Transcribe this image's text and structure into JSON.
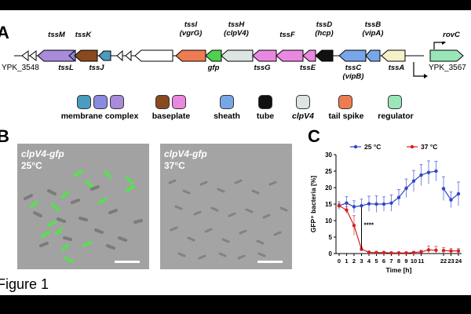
{
  "figure": {
    "caption": "Figure 1",
    "panels": {
      "a": "A",
      "b": "B",
      "c": "C"
    }
  },
  "gene_cluster": {
    "left_locus": "YPK_3548",
    "right_locus": "YPK_3567",
    "genes": [
      {
        "label": "tssM",
        "color": "#a98bdc"
      },
      {
        "label": "tssL",
        "color": "#a98bdc"
      },
      {
        "label": "tssK",
        "color": "#8a4a20"
      },
      {
        "label": "tssJ",
        "color": "#4b9cc0"
      },
      {
        "label": "tssI (vgrG)",
        "color": "#ee7c52"
      },
      {
        "label": "gfp",
        "color": "#4fd14f"
      },
      {
        "label": "tssH (clpV4)",
        "color": "#dde5e2"
      },
      {
        "label": "tssG",
        "color": "#ea88e0"
      },
      {
        "label": "tssF",
        "color": "#ea88e0"
      },
      {
        "label": "tssE",
        "color": "#ea88e0"
      },
      {
        "label": "tssD (hcp)",
        "color": "#111111"
      },
      {
        "label": "tssC (vipB)",
        "color": "#79a6e8"
      },
      {
        "label": "tssB (vipA)",
        "color": "#79a6e8"
      },
      {
        "label": "tssA",
        "color": "#f5f0c8"
      },
      {
        "label": "rovC",
        "color": "#9ae6b9"
      }
    ],
    "tssI_top": "tssI",
    "tssI_sub": "(vgrG)",
    "tssH_top": "tssH",
    "tssH_sub": "(clpV4)",
    "tssD_top": "tssD",
    "tssD_sub": "(hcp)",
    "tssB_top": "tssB",
    "tssB_sub": "(vipA)",
    "tssC_top": "tssC",
    "tssC_sub": "(vipB)"
  },
  "legend": [
    {
      "label": "membrane complex",
      "colors": [
        "#4b9cc0",
        "#8a8ae0",
        "#a98bdc"
      ]
    },
    {
      "label": "baseplate",
      "colors": [
        "#8a4a20",
        "#ea88e0"
      ]
    },
    {
      "label": "sheath",
      "colors": [
        "#79a6e8"
      ]
    },
    {
      "label": "tube",
      "colors": [
        "#111111"
      ]
    },
    {
      "label": "clpV4",
      "colors": [
        "#dde5e2"
      ]
    },
    {
      "label": "tail spike",
      "colors": [
        "#ee7c52"
      ]
    },
    {
      "label": "regulator",
      "colors": [
        "#9ae6b9"
      ]
    }
  ],
  "microscopy": {
    "left_strain": "clpV4-gfp",
    "left_temp": "25°C",
    "right_strain": "clpV4-gfp",
    "right_temp": "37°C"
  },
  "chart_data": {
    "type": "line",
    "ylabel": "GFP⁺ bacteria [%]",
    "xlabel": "Time [h]",
    "ylim": [
      0,
      30
    ],
    "y_ticks": [
      0,
      5,
      10,
      15,
      20,
      25,
      30
    ],
    "x_tick_labels": [
      "0",
      "1",
      "2",
      "3",
      "4",
      "5",
      "6",
      "7",
      "8",
      "9",
      "10",
      "11",
      "22",
      "23",
      "24"
    ],
    "legend_position": "top",
    "annotation": "****",
    "series": [
      {
        "name": "25 °C",
        "color": "#2f46c4",
        "values": [
          14.5,
          15.3,
          14.2,
          14.5,
          15.1,
          15.0,
          15.0,
          15.3,
          17.0,
          19.8,
          22.0,
          23.8,
          24.6,
          25.0,
          19.7,
          16.3,
          18.1
        ],
        "errors": [
          1.2,
          2.0,
          1.8,
          2.0,
          2.3,
          2.5,
          2.2,
          2.5,
          2.4,
          2.8,
          3.2,
          3.2,
          3.5,
          3.0,
          3.6,
          2.4,
          3.6
        ],
        "x_index": [
          0,
          1,
          2,
          3,
          4,
          5,
          6,
          7,
          8,
          9,
          10,
          11,
          12,
          13,
          14,
          15,
          16
        ]
      },
      {
        "name": "37 °C",
        "color": "#d42020",
        "values": [
          14.5,
          13.2,
          8.5,
          1.3,
          0.4,
          0.3,
          0.3,
          0.2,
          0.2,
          0.2,
          0.3,
          0.5,
          1.1,
          1.0,
          0.9,
          0.8,
          0.8
        ],
        "errors": [
          0.6,
          1.0,
          3.0,
          0.6,
          0.3,
          0.2,
          0.2,
          0.2,
          0.2,
          0.2,
          0.3,
          0.5,
          1.2,
          1.2,
          0.9,
          0.7,
          0.7
        ],
        "x_index": [
          0,
          1,
          2,
          3,
          4,
          5,
          6,
          7,
          8,
          9,
          10,
          11,
          12,
          13,
          14,
          15,
          16
        ]
      }
    ]
  }
}
